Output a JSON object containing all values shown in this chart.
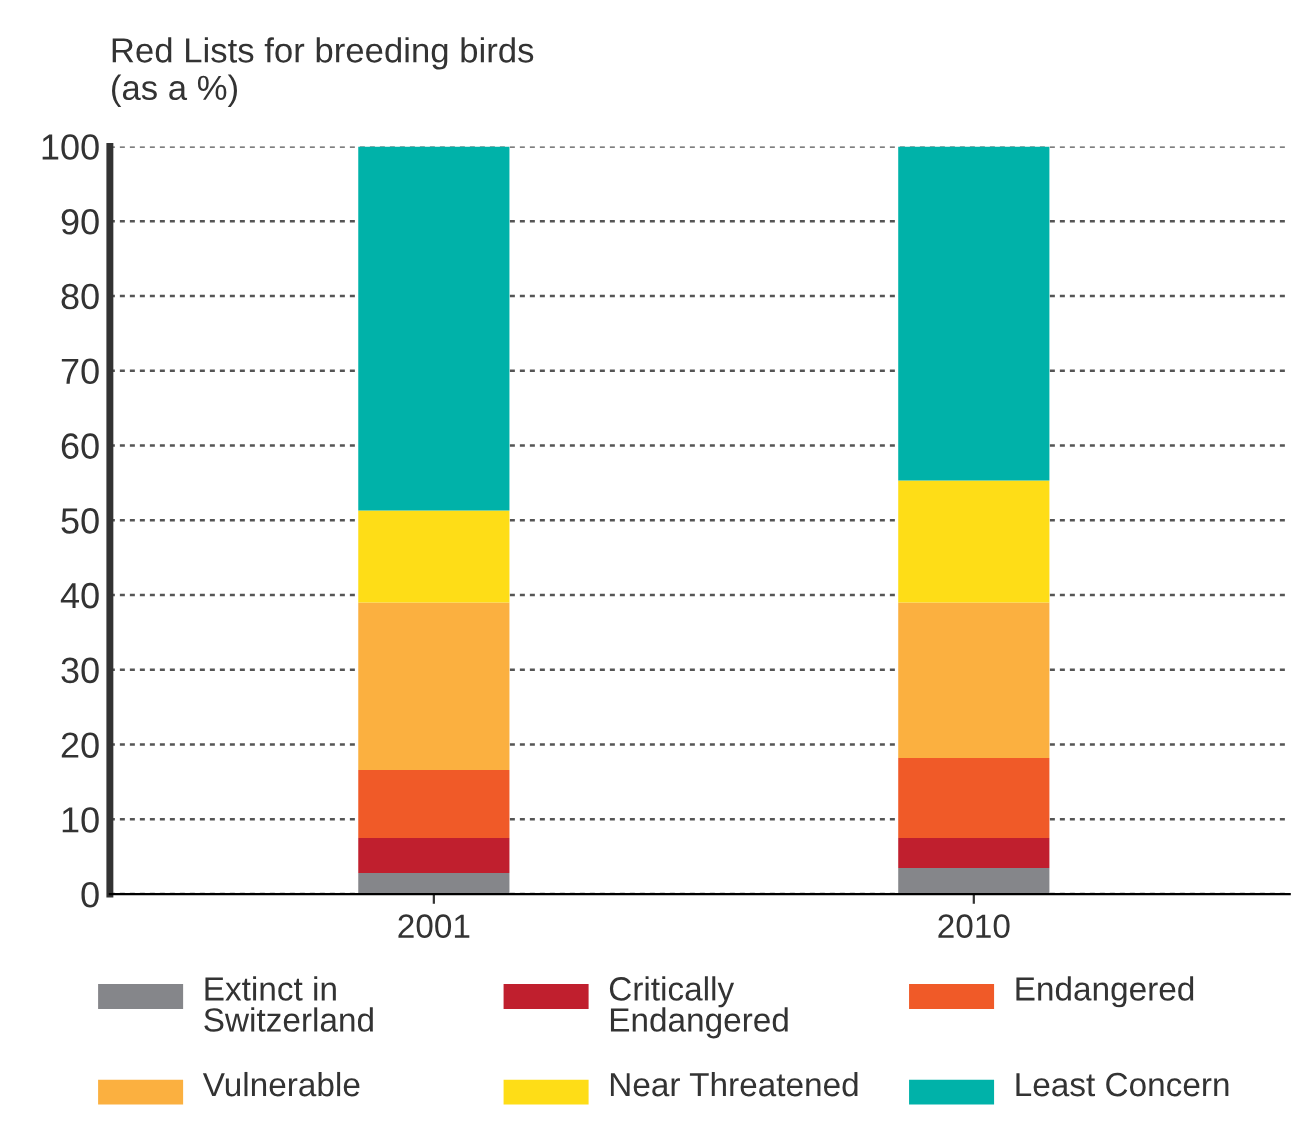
{
  "chart_data": {
    "type": "bar",
    "title": "Red Lists for breeding birds\n(as a %)",
    "categories": [
      "2001",
      "2010"
    ],
    "stacked": true,
    "series": [
      {
        "name": "Extinct in\nSwitzerland",
        "color": "#85868a",
        "values": [
          2.8,
          3.5
        ]
      },
      {
        "name": "Critically\nEndangered",
        "color": "#c01f2e",
        "values": [
          4.7,
          4.0
        ]
      },
      {
        "name": "Endangered",
        "color": "#f05a28",
        "values": [
          9.1,
          10.7
        ]
      },
      {
        "name": "Vulnerable",
        "color": "#fbb040",
        "values": [
          22.4,
          20.8
        ]
      },
      {
        "name": "Near Threatened",
        "color": "#fedd17",
        "values": [
          12.3,
          16.3
        ]
      },
      {
        "name": "Least Concern",
        "color": "#00b2a9",
        "values": [
          48.7,
          44.7
        ]
      }
    ],
    "ylim": [
      0,
      100
    ],
    "yticks": [
      0,
      10,
      20,
      30,
      40,
      50,
      60,
      70,
      80,
      90,
      100
    ],
    "grid": "y",
    "legend": "bottom"
  }
}
